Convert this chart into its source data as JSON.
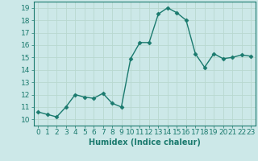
{
  "x": [
    0,
    1,
    2,
    3,
    4,
    5,
    6,
    7,
    8,
    9,
    10,
    11,
    12,
    13,
    14,
    15,
    16,
    17,
    18,
    19,
    20,
    21,
    22,
    23
  ],
  "y": [
    10.6,
    10.4,
    10.2,
    11.0,
    12.0,
    11.8,
    11.7,
    12.1,
    11.3,
    11.0,
    14.9,
    16.2,
    16.2,
    18.5,
    19.0,
    18.6,
    18.0,
    15.3,
    14.2,
    15.3,
    14.9,
    15.0,
    15.2,
    15.1
  ],
  "line_color": "#1a7a6e",
  "marker": "D",
  "markersize": 2.5,
  "linewidth": 1.0,
  "bg_color": "#cce8e8",
  "grid_color": "#b8d8d0",
  "xlabel": "Humidex (Indice chaleur)",
  "xlim": [
    -0.5,
    23.5
  ],
  "ylim": [
    9.5,
    19.5
  ],
  "yticks": [
    10,
    11,
    12,
    13,
    14,
    15,
    16,
    17,
    18,
    19
  ],
  "xticks": [
    0,
    1,
    2,
    3,
    4,
    5,
    6,
    7,
    8,
    9,
    10,
    11,
    12,
    13,
    14,
    15,
    16,
    17,
    18,
    19,
    20,
    21,
    22,
    23
  ],
  "xlabel_fontsize": 7,
  "tick_fontsize": 6.5
}
